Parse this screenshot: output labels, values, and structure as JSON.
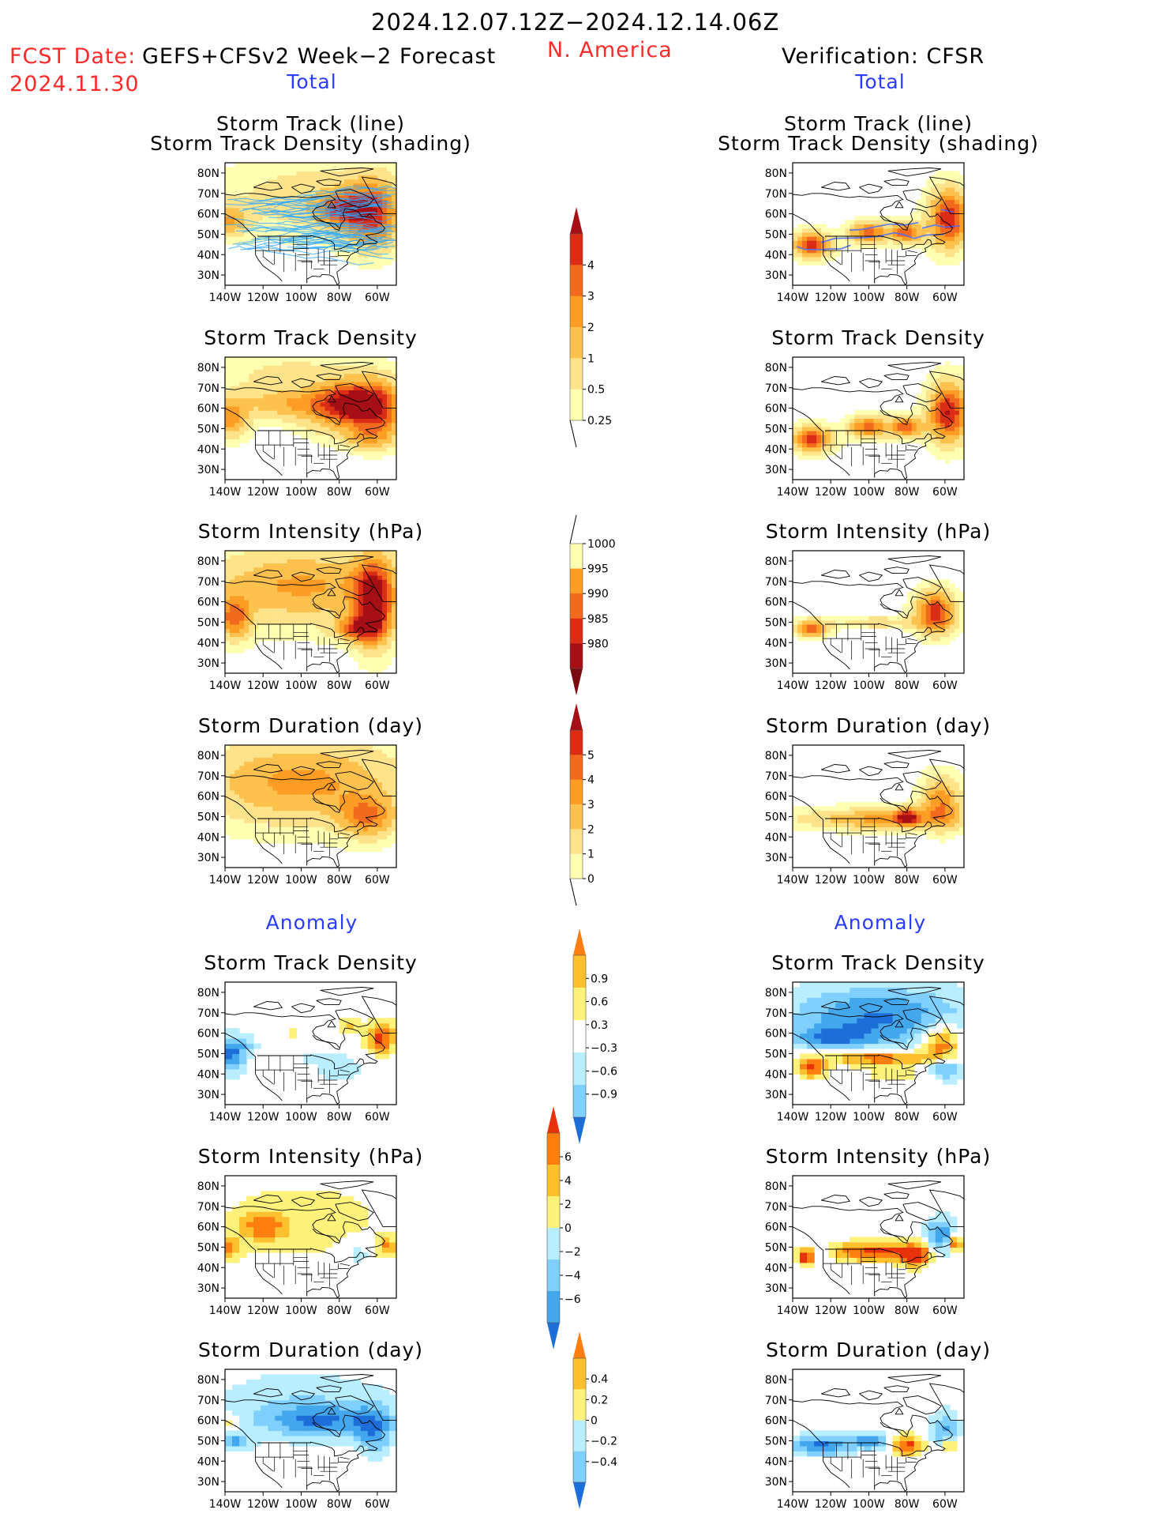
{
  "header": {
    "date_range": "2024.12.07.12Z−2024.12.14.06Z",
    "fcst_label": "FCST Date:",
    "model": "GEFS+CFSv2 Week−2 Forecast",
    "fcst_date": "2024.11.30",
    "region": "N. America",
    "verification": "Verification: CFSR",
    "total_left": "Total",
    "total_right": "Total",
    "anomaly_left": "Anomaly",
    "anomaly_right": "Anomaly"
  },
  "axes": {
    "lat_ticks": [
      "80N",
      "70N",
      "60N",
      "50N",
      "40N",
      "30N"
    ],
    "lon_ticks": [
      "140W",
      "120W",
      "100W",
      "80W",
      "60W"
    ],
    "lat_range": [
      25,
      85
    ],
    "lon_range": [
      -140,
      -50
    ]
  },
  "colors": {
    "warm": [
      "#ffffb2",
      "#fee38b",
      "#fdc14d",
      "#fd9d24",
      "#f26a1d",
      "#db2c16",
      "#a50f15"
    ],
    "anom_neg": [
      "#b8eeff",
      "#80d0ff",
      "#43a7ee",
      "#1e6ed9"
    ],
    "anom_pos": [
      "#fff27a",
      "#ffc02e",
      "#ff7e10",
      "#e8320a"
    ],
    "track_forecast": "#2fa8ff",
    "track_verif": "#4a6cff"
  },
  "chart_data": [
    {
      "type": "heatmap",
      "id": "fc_track",
      "title_lines": [
        "Storm Track (line)",
        "Storm Track Density (shading)"
      ],
      "column": "forecast",
      "colorbar": "density",
      "blobs": [
        {
          "lon": -95,
          "lat": 68,
          "rx": 45,
          "ry": 18,
          "v": 1.0
        },
        {
          "lon": -138,
          "lat": 57,
          "rx": 10,
          "ry": 8,
          "v": 1.8
        },
        {
          "lon": -63,
          "lat": 60,
          "rx": 14,
          "ry": 16,
          "v": 3.2
        },
        {
          "lon": -80,
          "lat": 62,
          "rx": 12,
          "ry": 8,
          "v": 2.4
        }
      ],
      "tracks": true
    },
    {
      "type": "heatmap",
      "id": "fc_density",
      "title_lines": [
        "Storm Track Density"
      ],
      "column": "forecast",
      "colorbar": "density",
      "blobs": [
        {
          "lon": -115,
          "lat": 72,
          "rx": 40,
          "ry": 12,
          "v": 0.6
        },
        {
          "lon": -110,
          "lat": 62,
          "rx": 22,
          "ry": 7,
          "v": 1.3
        },
        {
          "lon": -85,
          "lat": 60,
          "rx": 18,
          "ry": 12,
          "v": 1.6
        },
        {
          "lon": -75,
          "lat": 63,
          "rx": 14,
          "ry": 10,
          "v": 2.5
        },
        {
          "lon": -60,
          "lat": 60,
          "rx": 14,
          "ry": 14,
          "v": 3.4
        },
        {
          "lon": -138,
          "lat": 55,
          "rx": 10,
          "ry": 9,
          "v": 2.2
        },
        {
          "lon": -65,
          "lat": 45,
          "rx": 12,
          "ry": 5,
          "v": 1.2
        },
        {
          "lon": -100,
          "lat": 80,
          "rx": 30,
          "ry": 6,
          "v": 0.4
        }
      ]
    },
    {
      "type": "heatmap",
      "id": "fc_intensity",
      "title_lines": [
        "Storm Intensity (hPa)"
      ],
      "column": "forecast",
      "colorbar": "intensity",
      "blobs": [
        {
          "lon": -100,
          "lat": 68,
          "rx": 50,
          "ry": 18,
          "v": 2.0
        },
        {
          "lon": -62,
          "lat": 60,
          "rx": 10,
          "ry": 20,
          "v": 4.0
        },
        {
          "lon": -135,
          "lat": 52,
          "rx": 8,
          "ry": 10,
          "v": 2.5
        },
        {
          "lon": -70,
          "lat": 47,
          "rx": 12,
          "ry": 6,
          "v": 2.5
        }
      ]
    },
    {
      "type": "heatmap",
      "id": "fc_duration",
      "title_lines": [
        "Storm Duration (day)"
      ],
      "column": "forecast",
      "colorbar": "duration",
      "blobs": [
        {
          "lon": -100,
          "lat": 67,
          "rx": 52,
          "ry": 20,
          "v": 2.1
        },
        {
          "lon": -65,
          "lat": 50,
          "rx": 14,
          "ry": 10,
          "v": 2.2
        }
      ]
    },
    {
      "type": "heatmap",
      "id": "fc_anom_density",
      "title_lines": [
        "Storm Track Density"
      ],
      "column": "forecast",
      "colorbar": "anom_density",
      "diverging": true,
      "blobs": [
        {
          "lon": -137,
          "lat": 50,
          "rx": 8,
          "ry": 9,
          "v": -3.2
        },
        {
          "lon": -128,
          "lat": 55,
          "rx": 6,
          "ry": 4,
          "v": -1.0
        },
        {
          "lon": -80,
          "lat": 43,
          "rx": 12,
          "ry": 8,
          "v": -1.2
        },
        {
          "lon": -95,
          "lat": 48,
          "rx": 6,
          "ry": 3,
          "v": -1.0
        },
        {
          "lon": -58,
          "lat": 58,
          "rx": 8,
          "ry": 8,
          "v": 3.2
        },
        {
          "lon": -75,
          "lat": 64,
          "rx": 6,
          "ry": 4,
          "v": 1.5
        },
        {
          "lon": -105,
          "lat": 60,
          "rx": 5,
          "ry": 2,
          "v": 1.0
        }
      ]
    },
    {
      "type": "heatmap",
      "id": "fc_anom_intensity",
      "title_lines": [
        "Storm Intensity (hPa)"
      ],
      "column": "forecast",
      "colorbar": "anom_intensity",
      "diverging": true,
      "blobs": [
        {
          "lon": -100,
          "lat": 63,
          "rx": 50,
          "ry": 22,
          "v": 1.0
        },
        {
          "lon": -120,
          "lat": 60,
          "rx": 12,
          "ry": 7,
          "v": 2.0
        },
        {
          "lon": -138,
          "lat": 50,
          "rx": 6,
          "ry": 5,
          "v": 2.3
        },
        {
          "lon": -70,
          "lat": 47,
          "rx": 8,
          "ry": 7,
          "v": -1.2
        },
        {
          "lon": -55,
          "lat": 50,
          "rx": 5,
          "ry": 5,
          "v": 2.0
        }
      ]
    },
    {
      "type": "heatmap",
      "id": "fc_anom_duration",
      "title_lines": [
        "Storm Duration (day)"
      ],
      "column": "forecast",
      "colorbar": "anom_duration",
      "diverging": true,
      "blobs": [
        {
          "lon": -100,
          "lat": 68,
          "rx": 50,
          "ry": 18,
          "v": -1.2
        },
        {
          "lon": -90,
          "lat": 60,
          "rx": 30,
          "ry": 8,
          "v": -2.2
        },
        {
          "lon": -62,
          "lat": 55,
          "rx": 10,
          "ry": 12,
          "v": -2.2
        },
        {
          "lon": -135,
          "lat": 50,
          "rx": 8,
          "ry": 4,
          "v": -2.5
        },
        {
          "lon": -138,
          "lat": 58,
          "rx": 5,
          "ry": 5,
          "v": 1.5
        }
      ]
    },
    {
      "type": "heatmap",
      "id": "vf_track",
      "title_lines": [
        "Storm Track (line)",
        "Storm Track Density (shading)"
      ],
      "column": "verification",
      "colorbar": "density",
      "blobs": [
        {
          "lon": -130,
          "lat": 45,
          "rx": 10,
          "ry": 6,
          "v": 3.3
        },
        {
          "lon": -100,
          "lat": 51,
          "rx": 10,
          "ry": 5,
          "v": 2.8
        },
        {
          "lon": -80,
          "lat": 51,
          "rx": 8,
          "ry": 5,
          "v": 3.0
        },
        {
          "lon": -58,
          "lat": 58,
          "rx": 10,
          "ry": 14,
          "v": 3.6
        }
      ],
      "tracks": true
    },
    {
      "type": "heatmap",
      "id": "vf_density",
      "title_lines": [
        "Storm Track Density"
      ],
      "column": "verification",
      "colorbar": "density",
      "blobs": [
        {
          "lon": -130,
          "lat": 45,
          "rx": 10,
          "ry": 6,
          "v": 3.4
        },
        {
          "lon": -100,
          "lat": 51,
          "rx": 10,
          "ry": 5,
          "v": 2.9
        },
        {
          "lon": -80,
          "lat": 51,
          "rx": 8,
          "ry": 5,
          "v": 3.0
        },
        {
          "lon": -58,
          "lat": 58,
          "rx": 10,
          "ry": 14,
          "v": 3.8
        }
      ]
    },
    {
      "type": "heatmap",
      "id": "vf_intensity",
      "title_lines": [
        "Storm Intensity (hPa)"
      ],
      "column": "verification",
      "colorbar": "intensity",
      "blobs": [
        {
          "lon": -65,
          "lat": 55,
          "rx": 10,
          "ry": 10,
          "v": 3.5
        },
        {
          "lon": -95,
          "lat": 50,
          "rx": 25,
          "ry": 3,
          "v": 1.0
        },
        {
          "lon": -130,
          "lat": 47,
          "rx": 8,
          "ry": 4,
          "v": 3.0
        }
      ]
    },
    {
      "type": "heatmap",
      "id": "vf_duration",
      "title_lines": [
        "Storm Duration (day)"
      ],
      "column": "verification",
      "colorbar": "duration",
      "blobs": [
        {
          "lon": -95,
          "lat": 49,
          "rx": 40,
          "ry": 5,
          "v": 2.0
        },
        {
          "lon": -62,
          "lat": 57,
          "rx": 10,
          "ry": 12,
          "v": 2.4
        },
        {
          "lon": -80,
          "lat": 50,
          "rx": 6,
          "ry": 4,
          "v": 3.2
        }
      ]
    },
    {
      "type": "heatmap",
      "id": "vf_anom_density",
      "title_lines": [
        "Storm Track Density"
      ],
      "column": "verification",
      "colorbar": "anom_density",
      "diverging": true,
      "blobs": [
        {
          "lon": -95,
          "lat": 68,
          "rx": 50,
          "ry": 16,
          "v": -3.0
        },
        {
          "lon": -120,
          "lat": 58,
          "rx": 20,
          "ry": 5,
          "v": -2.0
        },
        {
          "lon": -62,
          "lat": 55,
          "rx": 10,
          "ry": 10,
          "v": 3.4
        },
        {
          "lon": -95,
          "lat": 48,
          "rx": 30,
          "ry": 4,
          "v": 3.2
        },
        {
          "lon": -130,
          "lat": 43,
          "rx": 8,
          "ry": 5,
          "v": 3.2
        },
        {
          "lon": -85,
          "lat": 40,
          "rx": 20,
          "ry": 4,
          "v": 1.2
        },
        {
          "lon": -60,
          "lat": 43,
          "rx": 10,
          "ry": 6,
          "v": -3.0
        }
      ]
    },
    {
      "type": "heatmap",
      "id": "vf_anom_intensity",
      "title_lines": [
        "Storm Intensity (hPa)"
      ],
      "column": "verification",
      "colorbar": "anom_intensity",
      "diverging": true,
      "blobs": [
        {
          "lon": -97,
          "lat": 48,
          "rx": 25,
          "ry": 5,
          "v": 3.2
        },
        {
          "lon": -75,
          "lat": 46,
          "rx": 8,
          "ry": 6,
          "v": 3.0
        },
        {
          "lon": -62,
          "lat": 55,
          "rx": 8,
          "ry": 10,
          "v": -3.0
        },
        {
          "lon": -55,
          "lat": 52,
          "rx": 4,
          "ry": 4,
          "v": 3.8
        },
        {
          "lon": -133,
          "lat": 45,
          "rx": 5,
          "ry": 4,
          "v": 3.4
        },
        {
          "lon": -125,
          "lat": 47,
          "rx": 4,
          "ry": 4,
          "v": -2.0
        }
      ]
    },
    {
      "type": "heatmap",
      "id": "vf_anom_duration",
      "title_lines": [
        "Storm Duration (day)"
      ],
      "column": "verification",
      "colorbar": "anom_duration",
      "diverging": true,
      "blobs": [
        {
          "lon": -125,
          "lat": 48,
          "rx": 16,
          "ry": 5,
          "v": -3.2
        },
        {
          "lon": -98,
          "lat": 50,
          "rx": 10,
          "ry": 4,
          "v": -3.0
        },
        {
          "lon": -80,
          "lat": 48,
          "rx": 9,
          "ry": 5,
          "v": 3.2
        },
        {
          "lon": -60,
          "lat": 55,
          "rx": 8,
          "ry": 10,
          "v": -2.2
        },
        {
          "lon": -58,
          "lat": 48,
          "rx": 4,
          "ry": 3,
          "v": 3.0
        }
      ]
    }
  ],
  "colorbars": {
    "density": {
      "labels": [
        "4",
        "3",
        "2",
        "1",
        "0.5",
        "0.25"
      ]
    },
    "intensity": {
      "labels": [
        "1000",
        "995",
        "990",
        "985",
        "980"
      ]
    },
    "duration": {
      "labels": [
        "5",
        "4",
        "3",
        "2",
        "1",
        "0"
      ]
    },
    "anom_density": {
      "labels": [
        "0.9",
        "0.6",
        "0.3",
        "−0.3",
        "−0.6",
        "−0.9"
      ]
    },
    "anom_intensity": {
      "labels": [
        "6",
        "4",
        "2",
        "0",
        "−2",
        "−4",
        "−6"
      ]
    },
    "anom_duration": {
      "labels": [
        "0.4",
        "0.2",
        "0",
        "−0.2",
        "−0.4"
      ]
    }
  }
}
